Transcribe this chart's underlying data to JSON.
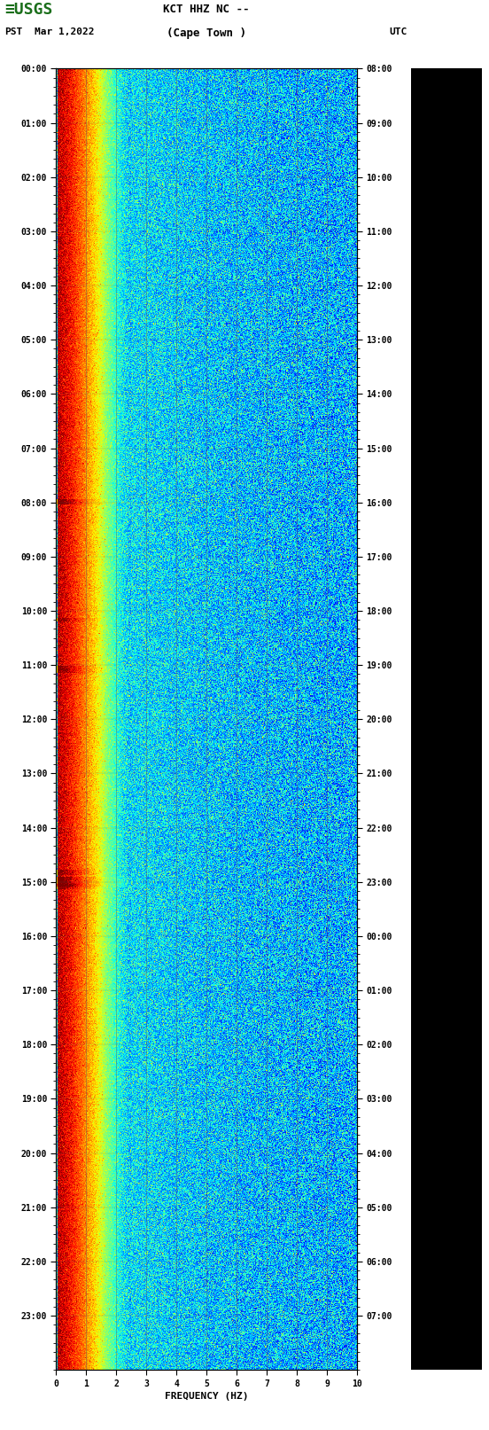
{
  "title_line1": "KCT HHZ NC --",
  "title_line2": "(Cape Town )",
  "left_label": "PST",
  "date_label": "Mar 1,2022",
  "right_label": "UTC",
  "xlabel": "FREQUENCY (HZ)",
  "freq_min": 0,
  "freq_max": 10,
  "pst_ticks": [
    "00:00",
    "01:00",
    "02:00",
    "03:00",
    "04:00",
    "05:00",
    "06:00",
    "07:00",
    "08:00",
    "09:00",
    "10:00",
    "11:00",
    "12:00",
    "13:00",
    "14:00",
    "15:00",
    "16:00",
    "17:00",
    "18:00",
    "19:00",
    "20:00",
    "21:00",
    "22:00",
    "23:00"
  ],
  "utc_ticks": [
    "08:00",
    "09:00",
    "10:00",
    "11:00",
    "12:00",
    "13:00",
    "14:00",
    "15:00",
    "16:00",
    "17:00",
    "18:00",
    "19:00",
    "20:00",
    "21:00",
    "22:00",
    "23:00",
    "00:00",
    "01:00",
    "02:00",
    "03:00",
    "04:00",
    "05:00",
    "06:00",
    "07:00"
  ],
  "freq_ticks": [
    0,
    1,
    2,
    3,
    4,
    5,
    6,
    7,
    8,
    9,
    10
  ],
  "colormap": "jet",
  "grid_color": "#5a5a5a",
  "text_color": "#000000",
  "fig_bg": "#ffffff",
  "black_panel_color": "#000000",
  "logo_color": "#1a6e1a",
  "tick_fontsize": 7,
  "label_fontsize": 8,
  "title_fontsize": 9
}
